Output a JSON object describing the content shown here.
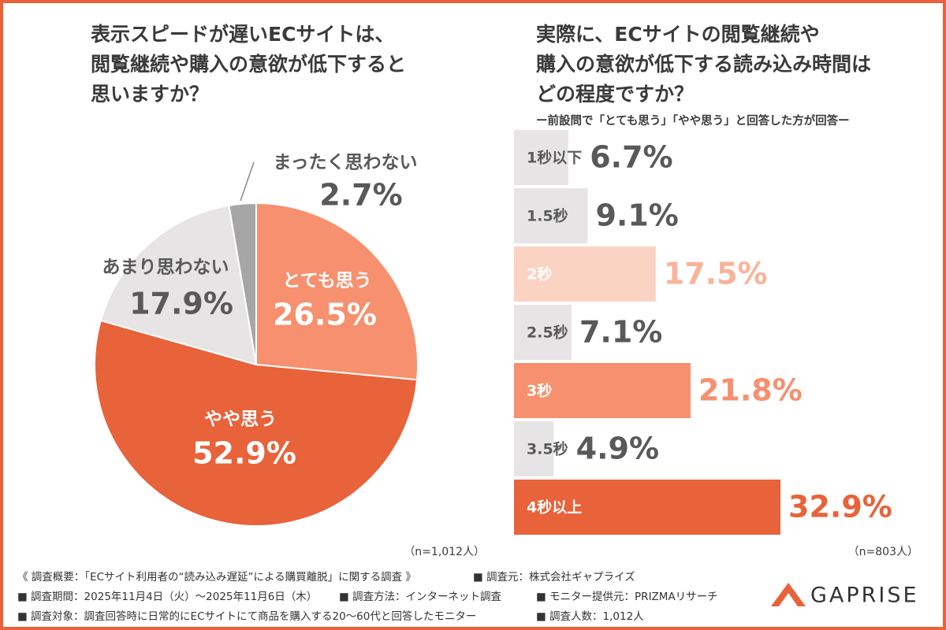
{
  "chart_data": [
    {
      "type": "pie",
      "title": [
        "表示スピードが遅いECサイトは、",
        "閲覧継続や購入の意欲が低下すると",
        "思いますか？"
      ],
      "categories": [
        "とても思う",
        "やや思う",
        "あまり思わない",
        "まったく思わない"
      ],
      "values": [
        26.5,
        52.9,
        17.9,
        2.7
      ],
      "value_labels": [
        "26.5%",
        "52.9%",
        "17.9%",
        "2.7%"
      ],
      "colors": [
        "#f7906e",
        "#e8623a",
        "#e6e4e4",
        "#a6a6a6"
      ],
      "note": "（n=1,012人）"
    },
    {
      "type": "hbar",
      "title": [
        "実際に、ECサイトの閲覧継続や",
        "購入の意欲が低下する読み込み時間は",
        "どの程度ですか？"
      ],
      "subtitle": "ー前設問で「とても思う」「やや思う」と回答した方が回答ー",
      "categories": [
        "1秒以下",
        "1.5秒",
        "2秒",
        "2.5秒",
        "3秒",
        "3.5秒",
        "4秒以上"
      ],
      "values": [
        6.7,
        9.1,
        17.5,
        7.1,
        21.8,
        4.9,
        32.9
      ],
      "value_labels": [
        "6.7%",
        "9.1%",
        "17.5%",
        "7.1%",
        "21.8%",
        "4.9%",
        "32.9%"
      ],
      "colors": [
        "#e6e4e4",
        "#e6e4e4",
        "#fbd3c3",
        "#e6e4e4",
        "#f7906e",
        "#e6e4e4",
        "#e8623a"
      ],
      "note": "（n=803人）"
    }
  ],
  "footer": {
    "rows": [
      [
        "《 調査概要：「ECサイト利用者の“読み込み遅延”による購買離脱」に関する調査 》",
        "■ 調査元：株式会社ギャプライズ"
      ],
      [
        "■ 調査期間：2025年11月4日（火）～2025年11月6日（木）",
        "■ 調査方法：インターネット調査",
        "■ モニター提供元：PRIZMAリサーチ"
      ],
      [
        "■ 調査対象：調査回答時に日常的にECサイトにて商品を購入する20〜60代と回答したモニター",
        "■ 調査人数：1,012人"
      ]
    ],
    "logo": "GAPRISE"
  }
}
